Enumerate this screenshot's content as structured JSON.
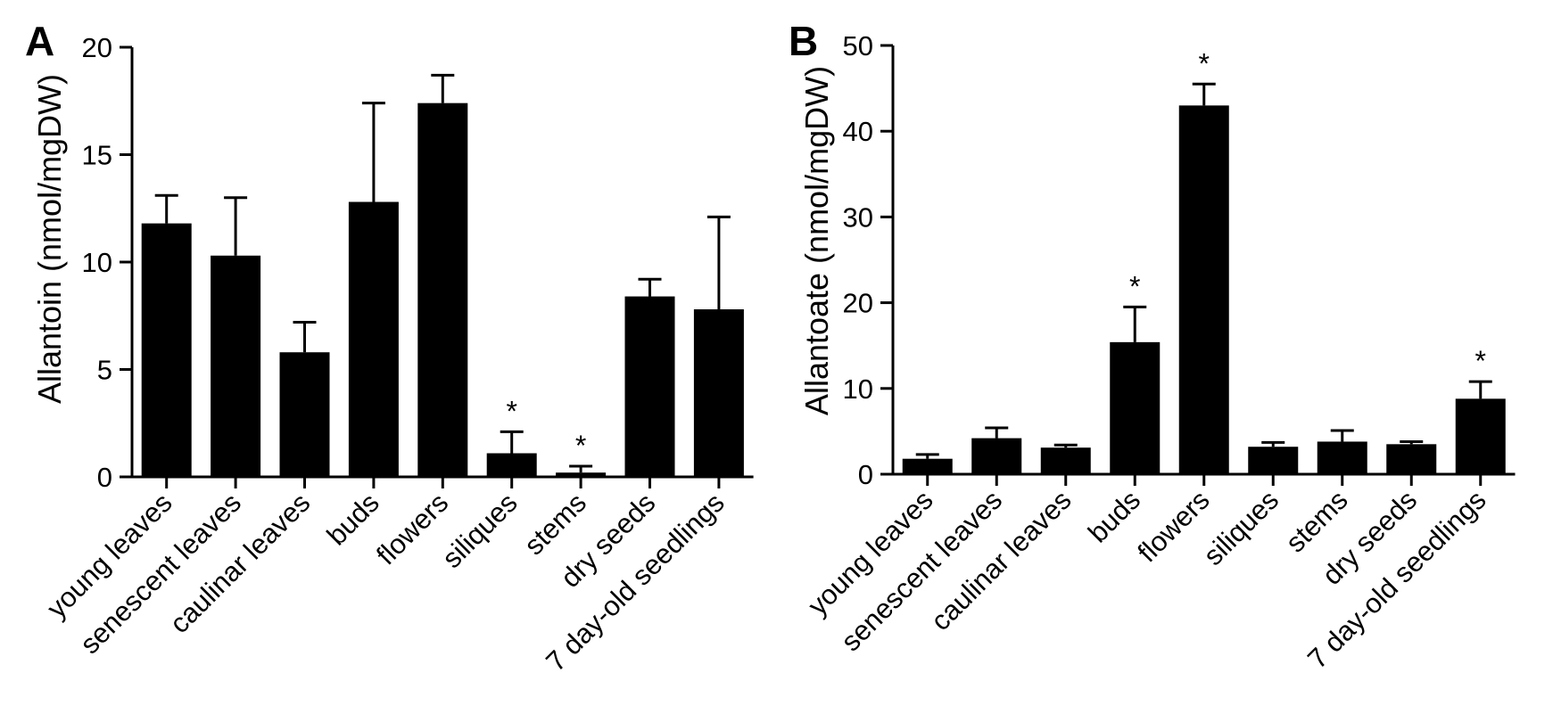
{
  "chart_data": [
    {
      "panel": "A",
      "type": "bar",
      "ylabel": "Allantoin (nmol/mgDW)",
      "xlabel": "",
      "ylim": [
        0,
        20
      ],
      "yticks": [
        0,
        5,
        10,
        15,
        20
      ],
      "grid": false,
      "legend": "none",
      "categories": [
        "young leaves",
        "senescent leaves",
        "caulinar leaves",
        "buds",
        "flowers",
        "siliques",
        "stems",
        "dry seeds",
        "7 day-old seedlings"
      ],
      "values": [
        11.8,
        10.3,
        5.8,
        12.8,
        17.4,
        1.1,
        0.2,
        8.4,
        7.8
      ],
      "errors": [
        1.3,
        2.7,
        1.4,
        4.6,
        1.3,
        1.0,
        0.3,
        0.8,
        4.3
      ],
      "significance": [
        "",
        "",
        "",
        "",
        "",
        "*",
        "*",
        "",
        ""
      ]
    },
    {
      "panel": "B",
      "type": "bar",
      "ylabel": "Allantoate (nmol/mgDW)",
      "xlabel": "",
      "ylim": [
        0,
        50
      ],
      "yticks": [
        0,
        10,
        20,
        30,
        40,
        50
      ],
      "grid": false,
      "legend": "none",
      "categories": [
        "young leaves",
        "senescent leaves",
        "caulinar leaves",
        "buds",
        "flowers",
        "siliques",
        "stems",
        "dry seeds",
        "7 day-old seedlings"
      ],
      "values": [
        1.8,
        4.2,
        3.1,
        15.4,
        43.0,
        3.2,
        3.8,
        3.5,
        8.8
      ],
      "errors": [
        0.5,
        1.2,
        0.3,
        4.1,
        2.5,
        0.5,
        1.3,
        0.3,
        2.0
      ],
      "significance": [
        "",
        "",
        "",
        "*",
        "*",
        "",
        "",
        "",
        "*"
      ]
    }
  ]
}
